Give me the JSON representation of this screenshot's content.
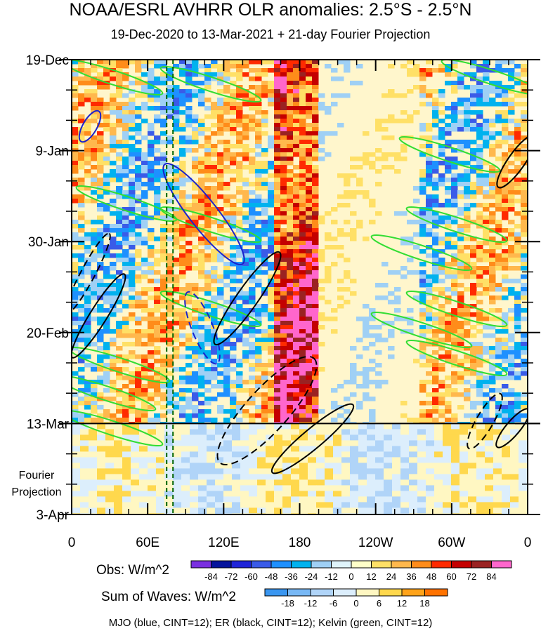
{
  "chart_data": {
    "type": "heatmap",
    "title": "NOAA/ESRL AVHRR OLR anomalies: 2.5°S - 2.5°N",
    "subtitle": "19-Dec-2020 to 13-Mar-2021 + 21-day Fourier Projection",
    "xlabel": "",
    "ylabel": "",
    "x_ticks": [
      {
        "label": "0",
        "lon": 0
      },
      {
        "label": "60E",
        "lon": 60
      },
      {
        "label": "120E",
        "lon": 120
      },
      {
        "label": "180",
        "lon": 180
      },
      {
        "label": "120W",
        "lon": 240
      },
      {
        "label": "60W",
        "lon": 300
      },
      {
        "label": "0",
        "lon": 360
      }
    ],
    "xlim": [
      0,
      360
    ],
    "y_ticks": [
      {
        "label": "19-Dec",
        "day": 0
      },
      {
        "label": "9-Jan",
        "day": 21
      },
      {
        "label": "30-Jan",
        "day": 42
      },
      {
        "label": "20-Feb",
        "day": 63
      },
      {
        "label": "13-Mar",
        "day": 84
      },
      {
        "label": "3-Apr",
        "day": 105
      }
    ],
    "ylim": [
      0,
      105
    ],
    "projection_label": [
      "Fourier",
      "Projection"
    ],
    "projection_start_day": 84,
    "reference_lines_lon": [
      75,
      80
    ],
    "obs_legend": {
      "label": "Obs: W/m^2",
      "levels": [
        "-84",
        "-72",
        "-60",
        "-48",
        "-36",
        "-24",
        "-12",
        "0",
        "12",
        "24",
        "36",
        "48",
        "60",
        "72",
        "84"
      ],
      "colors": [
        "#7a2fe0",
        "#06149c",
        "#1f24d8",
        "#3a5be8",
        "#1e90ff",
        "#00b2ee",
        "#9fd0f5",
        "#dff4fb",
        "#ffffc8",
        "#ffe066",
        "#ffb84d",
        "#ff8c1a",
        "#ff2a00",
        "#c40000",
        "#9a2222",
        "#ff66cc"
      ]
    },
    "waves_legend": {
      "label": "Sum of Waves: W/m^2",
      "levels": [
        "-18",
        "-12",
        "-6",
        "0",
        "6",
        "12",
        "18"
      ],
      "colors": [
        "#3a96f0",
        "#78b8f5",
        "#b0d4f8",
        "#dceefc",
        "#fff7c2",
        "#ffd84d",
        "#ffa31a",
        "#ff7200"
      ]
    },
    "footnote": "MJO (blue, CINT=12); ER (black, CINT=12); Kelvin (green, CINT=12)",
    "color_bg": "#fff6cc"
  }
}
